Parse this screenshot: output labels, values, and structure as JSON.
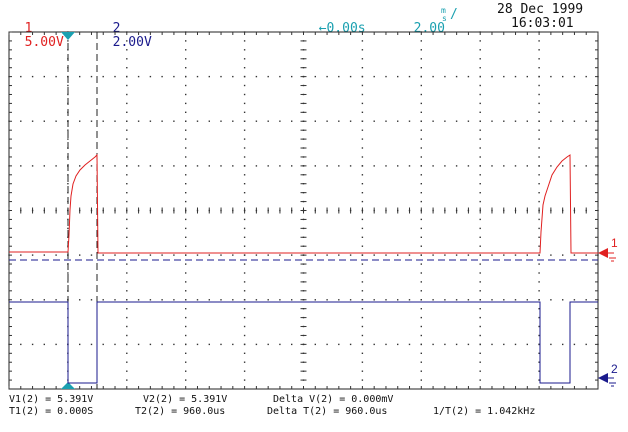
{
  "header": {
    "ch1_num": "1",
    "ch1_scale": "5.00V",
    "ch2_num": "2",
    "ch2_scale": "2.00V",
    "timebase_offset": "←0.00s",
    "timebase_scale": "2.00",
    "timebase_unit_top": "m",
    "timebase_unit_bottom": "s",
    "timebase_unit_slash": "/",
    "date": "28 Dec 1999",
    "time": "16:03:01"
  },
  "markers": {
    "ch1_label": "1",
    "ch2_label": "2"
  },
  "readouts": {
    "v1": "V1(2) = 5.391V",
    "v2": "V2(2) = 5.391V",
    "delta_v": "Delta V(2) = 0.000mV",
    "t1": "T1(2) = 0.000S",
    "t2": "T2(2) = 960.0us",
    "delta_t": "Delta T(2) = 960.0us",
    "inv_t": "1/T(2) = 1.042kHz"
  },
  "colors": {
    "ch1": "#e02020",
    "ch2": "#1a1a8c",
    "accent": "#1aa0b0",
    "grid": "#222222"
  }
}
